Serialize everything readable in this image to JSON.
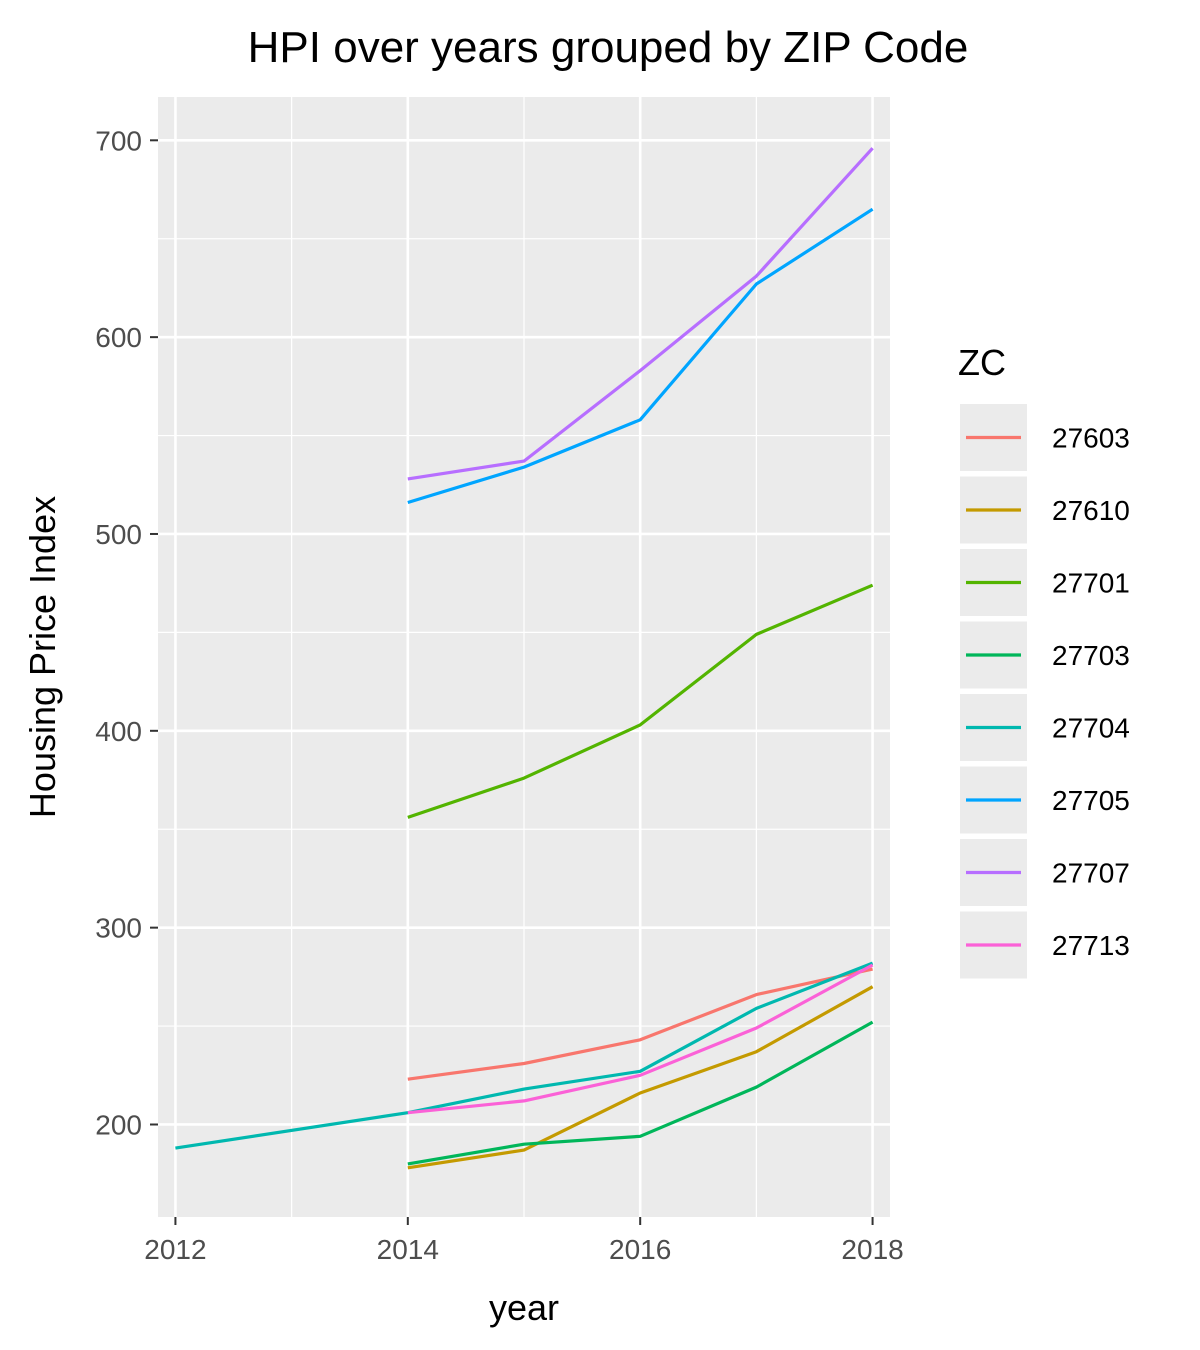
{
  "chart_data": {
    "type": "line",
    "title": "HPI over years grouped by ZIP Code",
    "xlabel": "year",
    "ylabel": "Housing Price Index",
    "xlim": [
      2011.85,
      2018.15
    ],
    "ylim": [
      153,
      722
    ],
    "x_ticks": [
      2012,
      2014,
      2016,
      2018
    ],
    "x_minor_ticks": [
      2013,
      2015,
      2017
    ],
    "y_ticks": [
      200,
      300,
      400,
      500,
      600,
      700
    ],
    "y_minor_ticks": [
      250,
      350,
      450,
      550,
      650
    ],
    "grid": true,
    "legend": {
      "title": "ZC",
      "position": "right"
    },
    "series": [
      {
        "name": "27603",
        "color": "#F8766D",
        "x": [
          2014,
          2015,
          2016,
          2017,
          2018
        ],
        "y": [
          223,
          231,
          243,
          266,
          279
        ]
      },
      {
        "name": "27610",
        "color": "#C49A00",
        "x": [
          2014,
          2015,
          2016,
          2017,
          2018
        ],
        "y": [
          178,
          187,
          216,
          237,
          270
        ]
      },
      {
        "name": "27701",
        "color": "#53B400",
        "x": [
          2014,
          2015,
          2016,
          2017,
          2018
        ],
        "y": [
          356,
          376,
          403,
          449,
          474
        ]
      },
      {
        "name": "27703",
        "color": "#00B65A",
        "x": [
          2014,
          2015,
          2016,
          2017,
          2018
        ],
        "y": [
          180,
          190,
          194,
          219,
          252
        ]
      },
      {
        "name": "27704",
        "color": "#00B8AF",
        "x": [
          2012,
          2014,
          2015,
          2016,
          2017,
          2018
        ],
        "y": [
          188,
          206,
          218,
          227,
          259,
          282
        ]
      },
      {
        "name": "27705",
        "color": "#00A5FF",
        "x": [
          2014,
          2015,
          2016,
          2017,
          2018
        ],
        "y": [
          516,
          534,
          558,
          627,
          665
        ]
      },
      {
        "name": "27707",
        "color": "#B76EFF",
        "x": [
          2014,
          2015,
          2016,
          2017,
          2018
        ],
        "y": [
          528,
          537,
          583,
          631,
          696
        ]
      },
      {
        "name": "27713",
        "color": "#FB61D7",
        "x": [
          2014,
          2015,
          2016,
          2017,
          2018
        ],
        "y": [
          206,
          212,
          225,
          249,
          281
        ]
      }
    ]
  }
}
